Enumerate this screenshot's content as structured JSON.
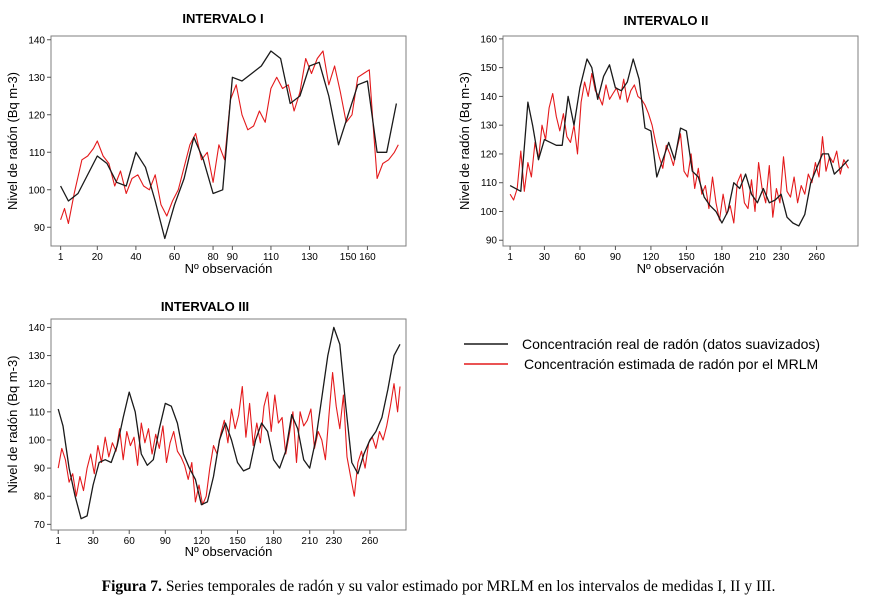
{
  "figure": {
    "caption_label": "Figura 7.",
    "caption_text": " Series temporales de radón y su valor estimado por MRLM en los intervalos de medidas I, II y III."
  },
  "legend": {
    "real": {
      "label": "Concentración real de radón (datos suavizados)",
      "color": "#1a1a1a"
    },
    "est": {
      "label": "Concentración estimada de radón por el MRLM",
      "color": "#e41a1c"
    }
  },
  "chart_data": [
    {
      "type": "line",
      "title": "INTERVALO I",
      "xlabel": "Nº observación",
      "ylabel": "Nivel de radón (Bq m-3)",
      "xlim": [
        -4,
        180
      ],
      "ylim": [
        85,
        141
      ],
      "xticks": [
        1,
        20,
        40,
        60,
        80,
        90,
        110,
        130,
        150,
        160
      ],
      "xticklabels": [
        "1",
        "20",
        "40",
        "60",
        "80",
        "90",
        "110",
        "130",
        "150",
        "160"
      ],
      "yticks": [
        90,
        100,
        110,
        120,
        130,
        140
      ],
      "series": [
        {
          "name": "real",
          "x": [
            1,
            5,
            10,
            20,
            25,
            30,
            35,
            40,
            45,
            50,
            55,
            60,
            65,
            70,
            75,
            80,
            85,
            90,
            95,
            100,
            105,
            110,
            115,
            120,
            125,
            130,
            135,
            140,
            145,
            150,
            155,
            160,
            165,
            170,
            175
          ],
          "y": [
            101,
            97,
            99,
            109,
            107,
            102,
            101,
            110,
            106,
            97,
            87,
            96,
            103,
            114,
            108,
            99,
            100,
            130,
            129,
            131,
            133,
            137,
            135,
            123,
            125,
            133,
            134,
            125,
            112,
            120,
            128,
            129,
            110,
            110,
            123
          ]
        },
        {
          "name": "est",
          "x": [
            1,
            3,
            5,
            8,
            12,
            15,
            18,
            20,
            23,
            26,
            29,
            32,
            35,
            38,
            41,
            44,
            47,
            50,
            53,
            56,
            59,
            62,
            65,
            68,
            71,
            74,
            77,
            80,
            83,
            86,
            89,
            92,
            95,
            98,
            101,
            104,
            107,
            110,
            113,
            116,
            119,
            122,
            125,
            128,
            131,
            134,
            137,
            140,
            143,
            146,
            149,
            152,
            155,
            158,
            161,
            163,
            165,
            168,
            171,
            174,
            176
          ],
          "y": [
            92,
            95,
            91,
            99,
            108,
            109,
            111,
            113,
            109,
            107,
            101,
            105,
            99,
            103,
            104,
            101,
            100,
            104,
            96,
            93,
            97,
            100,
            106,
            112,
            115,
            108,
            110,
            102,
            112,
            108,
            124,
            128,
            120,
            116,
            117,
            121,
            118,
            127,
            130,
            127,
            128,
            121,
            126,
            135,
            131,
            135,
            137,
            128,
            133,
            126,
            118,
            120,
            130,
            131,
            132,
            117,
            103,
            107,
            108,
            110,
            112
          ]
        }
      ]
    },
    {
      "type": "line",
      "title": "INTERVALO II",
      "xlabel": "Nº observación",
      "ylabel": "Nivel de radón (Bq m-3)",
      "xlim": [
        -5,
        295
      ],
      "ylim": [
        88,
        161
      ],
      "xticks": [
        1,
        30,
        60,
        90,
        120,
        150,
        180,
        210,
        230,
        260
      ],
      "xticklabels": [
        "1",
        "30",
        "60",
        "90",
        "120",
        "150",
        "180",
        "210",
        "230",
        "260"
      ],
      "yticks": [
        90,
        100,
        110,
        120,
        130,
        140,
        150,
        160
      ],
      "series": [
        {
          "name": "real",
          "x": [
            1,
            10,
            16,
            20,
            25,
            30,
            40,
            45,
            50,
            55,
            60,
            66,
            70,
            75,
            80,
            85,
            90,
            95,
            100,
            105,
            110,
            115,
            120,
            125,
            130,
            135,
            140,
            145,
            150,
            155,
            160,
            165,
            170,
            175,
            180,
            185,
            190,
            195,
            200,
            205,
            210,
            215,
            220,
            225,
            230,
            235,
            240,
            245,
            250,
            255,
            260,
            265,
            270,
            275,
            280,
            287
          ],
          "y": [
            109,
            107,
            138,
            130,
            118,
            125,
            123,
            123,
            140,
            130,
            143,
            153,
            150,
            139,
            147,
            151,
            143,
            142,
            145,
            153,
            146,
            129,
            128,
            112,
            118,
            124,
            118,
            129,
            128,
            114,
            112,
            105,
            102,
            100,
            96,
            100,
            110,
            108,
            113,
            106,
            103,
            108,
            103,
            104,
            106,
            98,
            96,
            95,
            99,
            110,
            115,
            120,
            120,
            113,
            115,
            118
          ]
        },
        {
          "name": "est",
          "x": [
            1,
            4,
            7,
            10,
            13,
            16,
            19,
            22,
            25,
            28,
            31,
            34,
            37,
            40,
            43,
            46,
            49,
            52,
            55,
            58,
            61,
            64,
            67,
            70,
            73,
            76,
            79,
            82,
            85,
            88,
            91,
            94,
            97,
            100,
            103,
            106,
            109,
            112,
            115,
            118,
            121,
            124,
            127,
            130,
            133,
            136,
            139,
            142,
            145,
            148,
            151,
            154,
            157,
            160,
            163,
            166,
            169,
            172,
            175,
            178,
            181,
            184,
            187,
            190,
            193,
            196,
            199,
            202,
            205,
            208,
            211,
            214,
            217,
            220,
            223,
            226,
            229,
            232,
            235,
            238,
            241,
            244,
            247,
            250,
            253,
            256,
            259,
            262,
            265,
            268,
            271,
            274,
            277,
            280,
            283,
            287
          ],
          "y": [
            106,
            104,
            108,
            121,
            107,
            117,
            112,
            124,
            118,
            130,
            125,
            136,
            141,
            133,
            128,
            134,
            126,
            124,
            130,
            120,
            138,
            145,
            140,
            148,
            142,
            140,
            137,
            144,
            139,
            141,
            143,
            139,
            146,
            138,
            142,
            144,
            140,
            139,
            137,
            134,
            130,
            124,
            119,
            115,
            123,
            120,
            116,
            122,
            127,
            114,
            112,
            120,
            108,
            115,
            106,
            109,
            101,
            112,
            103,
            97,
            106,
            99,
            102,
            96,
            110,
            113,
            103,
            101,
            111,
            100,
            117,
            108,
            103,
            116,
            98,
            108,
            103,
            119,
            107,
            105,
            112,
            103,
            109,
            106,
            113,
            110,
            117,
            112,
            126,
            114,
            119,
            117,
            121,
            113,
            118,
            115
          ]
        }
      ]
    },
    {
      "type": "line",
      "title": "INTERVALO III",
      "xlabel": "Nº observación",
      "ylabel": "Nivel de radón (Bq m-3)",
      "xlim": [
        -5,
        290
      ],
      "ylim": [
        68,
        143
      ],
      "xticks": [
        1,
        30,
        60,
        90,
        120,
        150,
        180,
        210,
        230,
        260
      ],
      "xticklabels": [
        "1",
        "30",
        "60",
        "90",
        "120",
        "150",
        "180",
        "210",
        "230",
        "260"
      ],
      "yticks": [
        70,
        80,
        90,
        100,
        110,
        120,
        130,
        140
      ],
      "series": [
        {
          "name": "real",
          "x": [
            1,
            5,
            10,
            15,
            20,
            25,
            30,
            35,
            40,
            45,
            50,
            55,
            60,
            65,
            70,
            75,
            80,
            85,
            90,
            95,
            100,
            105,
            110,
            115,
            120,
            125,
            130,
            135,
            140,
            145,
            150,
            155,
            160,
            165,
            170,
            175,
            180,
            185,
            190,
            195,
            200,
            205,
            210,
            215,
            220,
            225,
            230,
            235,
            240,
            245,
            250,
            255,
            260,
            265,
            270,
            275,
            280,
            285
          ],
          "y": [
            111,
            105,
            90,
            80,
            72,
            73,
            84,
            92,
            93,
            92,
            98,
            108,
            117,
            110,
            95,
            91,
            93,
            104,
            113,
            112,
            106,
            95,
            90,
            86,
            77,
            78,
            87,
            100,
            106,
            100,
            92,
            89,
            90,
            100,
            106,
            103,
            93,
            90,
            96,
            109,
            104,
            93,
            90,
            100,
            115,
            130,
            140,
            134,
            112,
            92,
            88,
            95,
            100,
            103,
            108,
            118,
            130,
            134
          ]
        },
        {
          "name": "est",
          "x": [
            1,
            4,
            7,
            10,
            13,
            16,
            19,
            22,
            25,
            28,
            31,
            34,
            37,
            40,
            43,
            46,
            49,
            52,
            55,
            58,
            61,
            64,
            67,
            70,
            73,
            76,
            79,
            82,
            85,
            88,
            91,
            94,
            97,
            100,
            103,
            106,
            109,
            112,
            115,
            118,
            121,
            124,
            127,
            130,
            133,
            136,
            139,
            142,
            145,
            148,
            151,
            154,
            157,
            160,
            163,
            166,
            169,
            172,
            175,
            178,
            181,
            184,
            187,
            190,
            193,
            196,
            199,
            202,
            205,
            208,
            211,
            214,
            217,
            220,
            223,
            226,
            229,
            232,
            235,
            238,
            241,
            244,
            247,
            250,
            253,
            256,
            259,
            262,
            265,
            268,
            271,
            274,
            277,
            280,
            283,
            285
          ],
          "y": [
            90,
            97,
            93,
            85,
            88,
            80,
            87,
            82,
            90,
            95,
            88,
            98,
            92,
            101,
            94,
            99,
            96,
            104,
            93,
            103,
            98,
            101,
            91,
            106,
            99,
            104,
            95,
            102,
            97,
            105,
            92,
            99,
            103,
            96,
            94,
            91,
            86,
            92,
            78,
            84,
            77,
            80,
            90,
            98,
            95,
            102,
            107,
            99,
            111,
            104,
            109,
            119,
            101,
            113,
            98,
            106,
            99,
            112,
            117,
            103,
            116,
            106,
            108,
            95,
            102,
            110,
            92,
            110,
            105,
            107,
            111,
            97,
            103,
            100,
            93,
            109,
            124,
            112,
            104,
            116,
            94,
            87,
            80,
            92,
            96,
            90,
            99,
            101,
            97,
            103,
            100,
            105,
            112,
            120,
            110,
            119
          ]
        }
      ]
    }
  ]
}
